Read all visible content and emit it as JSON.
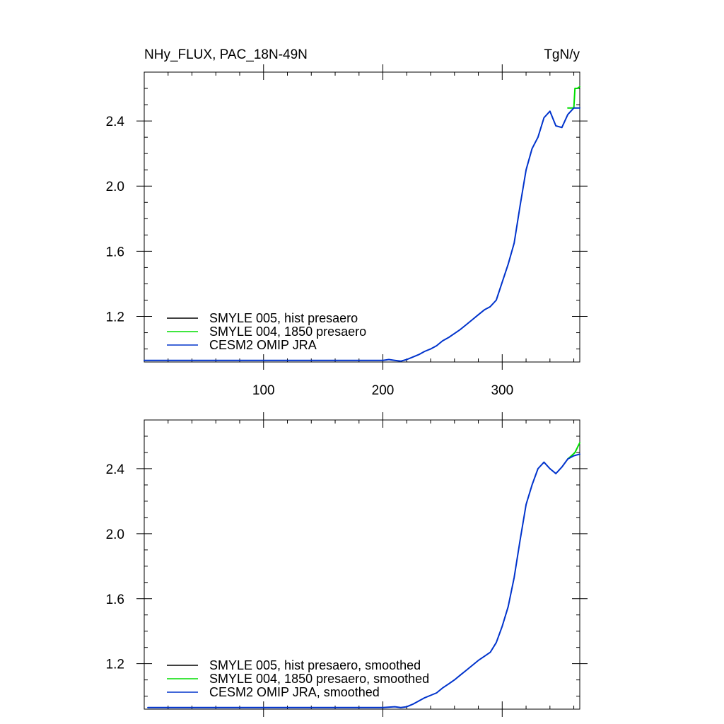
{
  "chart_data": [
    {
      "type": "line",
      "title_left": "NHy_FLUX, PAC_18N-49N",
      "title_right": "TgN/y",
      "xlim": [
        0,
        365
      ],
      "ylim": [
        0.92,
        2.7
      ],
      "x_ticks": [
        100,
        200,
        300
      ],
      "y_ticks": [
        1.2,
        1.6,
        2.0,
        2.4
      ],
      "y_tick_labels": [
        "1.2",
        "1.6",
        "2.0",
        "2.4"
      ],
      "x_tick_labels": [
        "100",
        "200",
        "300"
      ],
      "show_x_tick_labels": true,
      "grid": false,
      "legend_position": "lower-left",
      "series": [
        {
          "name": "SMYLE 005, hist presaero",
          "color": "#000000",
          "x": [],
          "y": []
        },
        {
          "name": "SMYLE 004, 1850 presaero",
          "color": "#00dd00",
          "x": [
            355,
            360,
            361,
            363,
            365
          ],
          "y": [
            2.48,
            2.48,
            2.6,
            2.6,
            2.61
          ]
        },
        {
          "name": "CESM2 OMIP JRA",
          "color": "#0033cc",
          "x": [
            0,
            100,
            200,
            205,
            210,
            215,
            220,
            225,
            230,
            235,
            240,
            245,
            250,
            255,
            260,
            265,
            270,
            275,
            280,
            285,
            290,
            295,
            300,
            305,
            310,
            315,
            320,
            325,
            330,
            335,
            340,
            345,
            350,
            355,
            360,
            365
          ],
          "y": [
            0.93,
            0.93,
            0.93,
            0.935,
            0.93,
            0.925,
            0.935,
            0.95,
            0.965,
            0.985,
            1.0,
            1.02,
            1.05,
            1.07,
            1.095,
            1.12,
            1.15,
            1.18,
            1.21,
            1.24,
            1.26,
            1.3,
            1.41,
            1.52,
            1.65,
            1.88,
            2.1,
            2.23,
            2.3,
            2.42,
            2.46,
            2.37,
            2.36,
            2.44,
            2.48,
            2.48
          ]
        }
      ]
    },
    {
      "type": "line",
      "title_left": "",
      "title_right": "",
      "xlim": [
        0,
        365
      ],
      "ylim": [
        0.92,
        2.7
      ],
      "x_ticks": [
        100,
        200,
        300
      ],
      "y_ticks": [
        1.2,
        1.6,
        2.0,
        2.4
      ],
      "y_tick_labels": [
        "1.2",
        "1.6",
        "2.0",
        "2.4"
      ],
      "x_tick_labels": [
        "100",
        "200",
        "300"
      ],
      "show_x_tick_labels": false,
      "grid": false,
      "legend_position": "lower-left",
      "series": [
        {
          "name": "SMYLE 005, hist presaero, smoothed",
          "color": "#000000",
          "x": [],
          "y": []
        },
        {
          "name": "SMYLE 004, 1850 presaero, smoothed",
          "color": "#00dd00",
          "x": [
            355,
            358,
            361,
            363,
            365
          ],
          "y": [
            2.46,
            2.48,
            2.5,
            2.53,
            2.56
          ]
        },
        {
          "name": "CESM2 OMIP JRA, smoothed",
          "color": "#0033cc",
          "x": [
            3,
            100,
            200,
            210,
            215,
            220,
            225,
            230,
            235,
            240,
            245,
            250,
            255,
            260,
            265,
            270,
            275,
            280,
            285,
            290,
            295,
            300,
            305,
            310,
            315,
            320,
            325,
            330,
            335,
            340,
            345,
            350,
            355,
            360,
            365
          ],
          "y": [
            0.93,
            0.93,
            0.93,
            0.935,
            0.93,
            0.935,
            0.95,
            0.97,
            0.99,
            1.005,
            1.02,
            1.05,
            1.075,
            1.1,
            1.13,
            1.16,
            1.19,
            1.22,
            1.245,
            1.27,
            1.33,
            1.43,
            1.55,
            1.73,
            1.96,
            2.18,
            2.3,
            2.4,
            2.44,
            2.4,
            2.37,
            2.41,
            2.46,
            2.48,
            2.49
          ]
        }
      ]
    }
  ]
}
